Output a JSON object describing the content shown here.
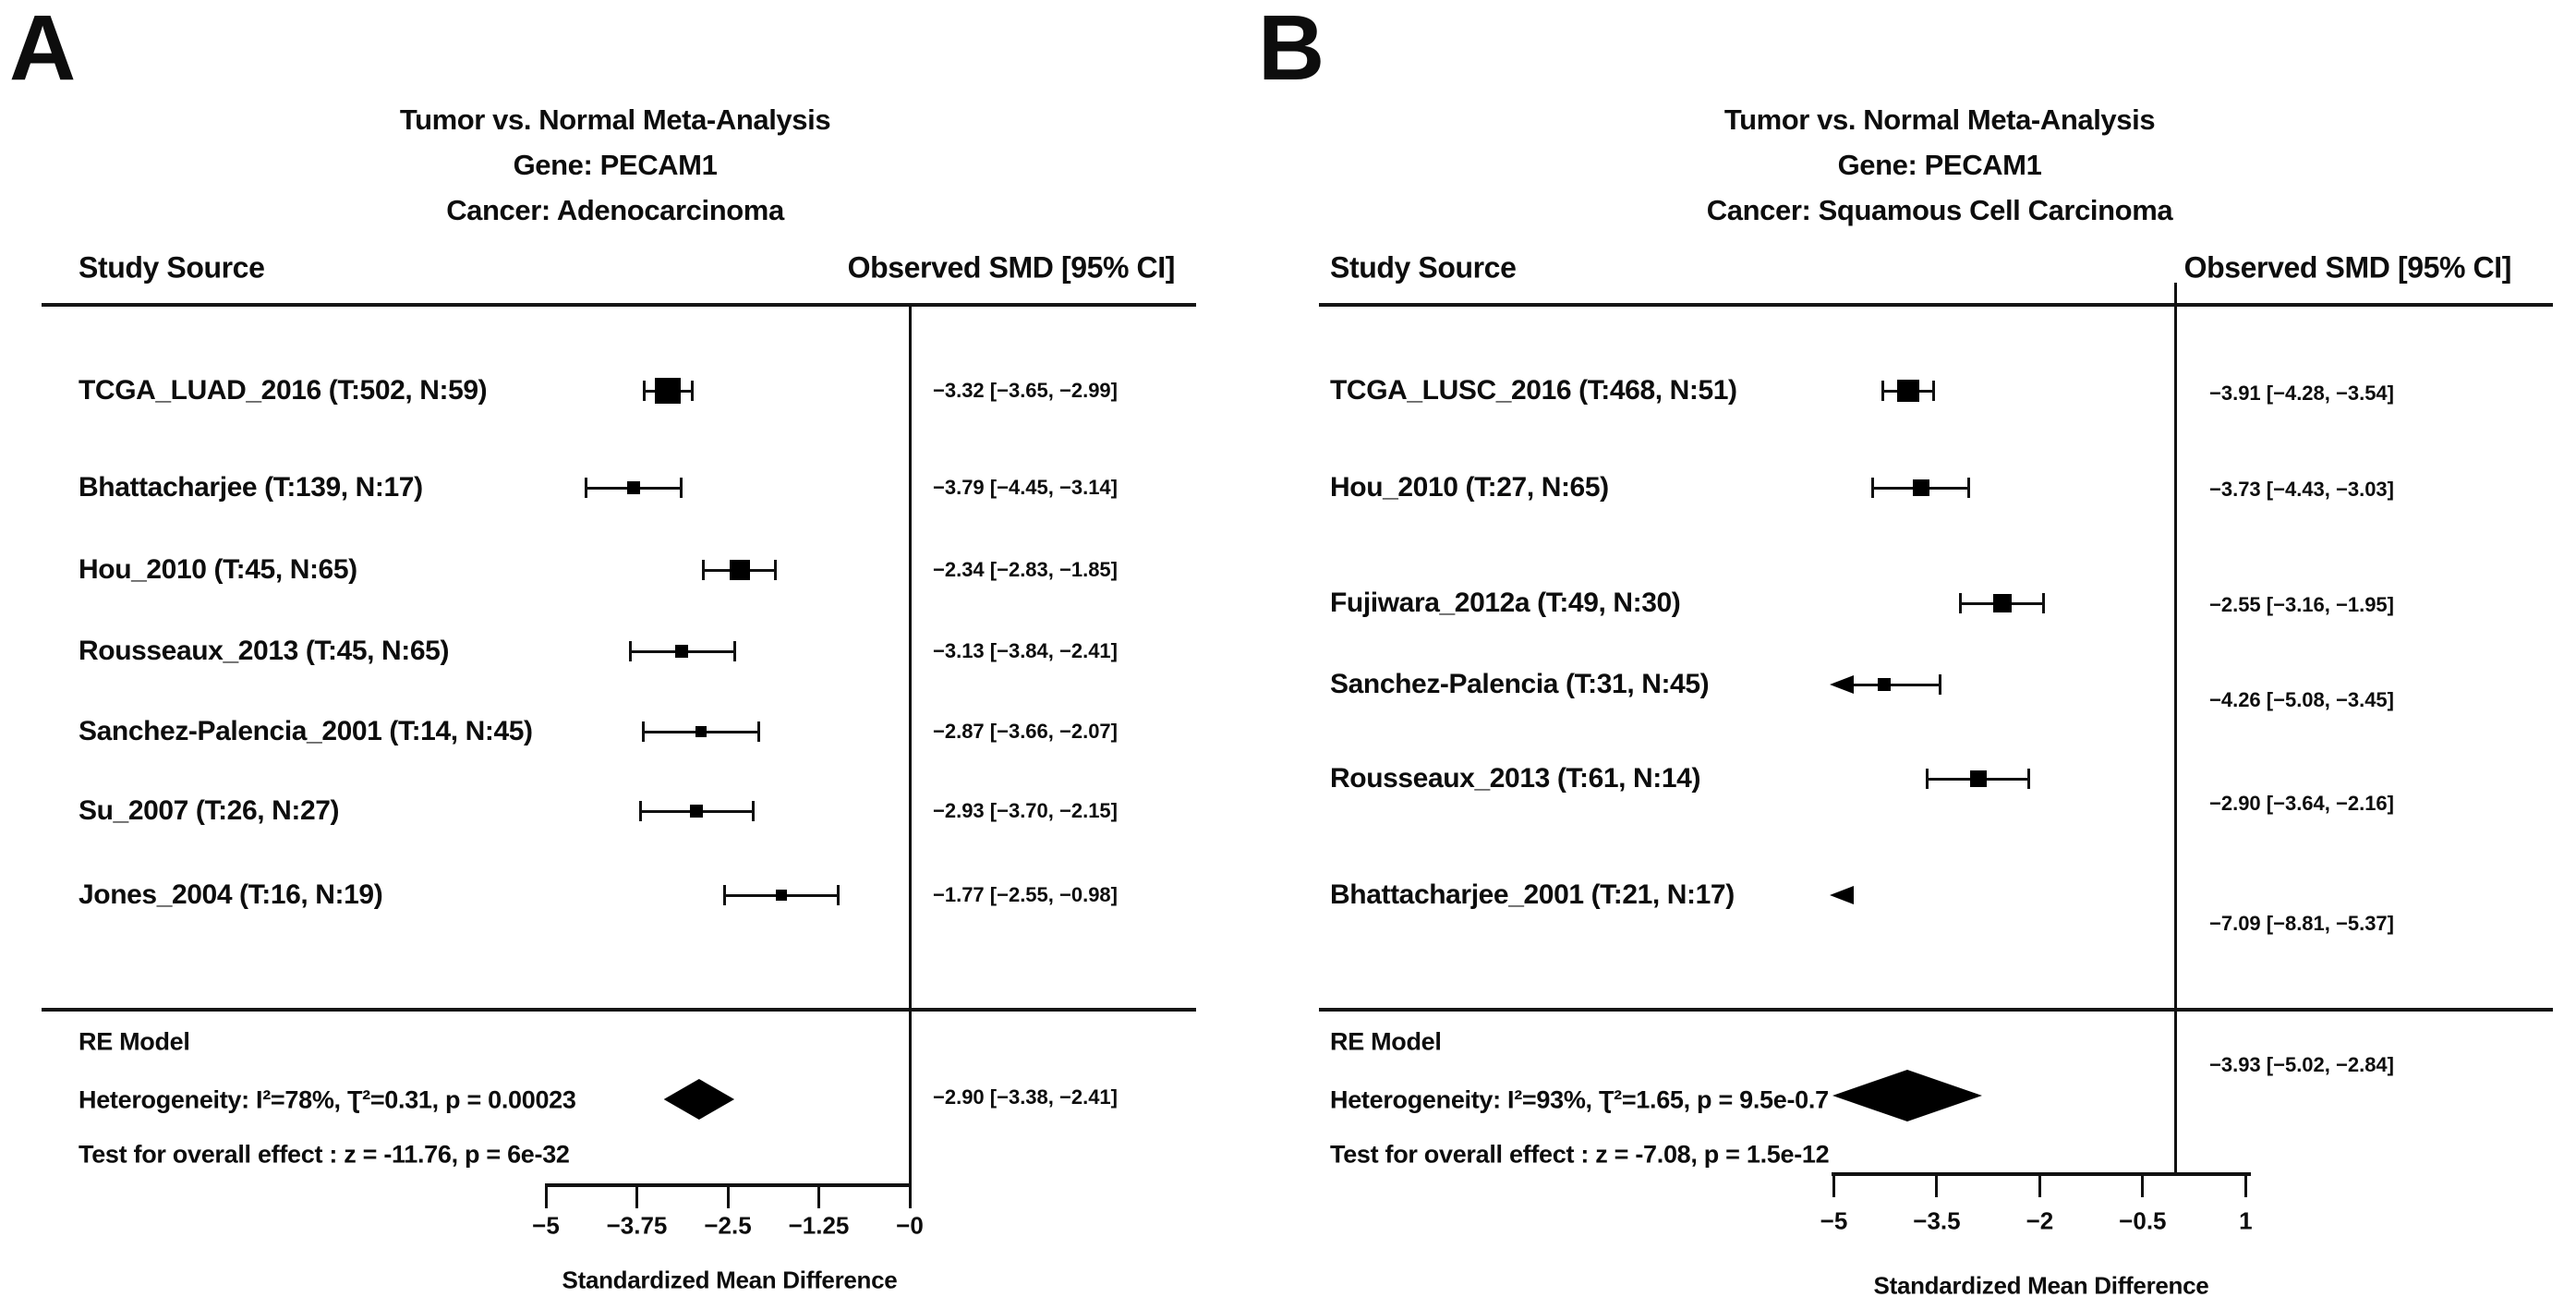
{
  "figure_name": "Tumor vs. Normal PECAM1 forest plots",
  "chart_data": [
    {
      "type": "forest",
      "panel": "A",
      "title": "Tumor vs. Normal Meta-Analysis",
      "subtitle_gene": "Gene: PECAM1",
      "subtitle_cancer": "Cancer: Adenocarcinoma",
      "col_header_left": "Study Source",
      "col_header_right": "Observed SMD [95% CI]",
      "xlabel": "Standardized Mean Difference",
      "xlim": [
        -5,
        0
      ],
      "xticks": [
        {
          "value": -5,
          "label": "−5"
        },
        {
          "value": -3.75,
          "label": "−3.75"
        },
        {
          "value": -2.5,
          "label": "−2.5"
        },
        {
          "value": -1.25,
          "label": "−1.25"
        },
        {
          "value": 0,
          "label": "−0"
        }
      ],
      "studies": [
        {
          "label": "TCGA_LUAD_2016 (T:502, N:59)",
          "smd": -3.32,
          "ci_low": -3.65,
          "ci_high": -2.99,
          "value_label": "−3.32 [−3.65, −2.99]",
          "marker_size": 28
        },
        {
          "label": "Bhattacharjee (T:139, N:17)",
          "smd": -3.79,
          "ci_low": -4.45,
          "ci_high": -3.14,
          "value_label": "−3.79 [−4.45, −3.14]",
          "marker_size": 14
        },
        {
          "label": "Hou_2010 (T:45, N:65)",
          "smd": -2.34,
          "ci_low": -2.83,
          "ci_high": -1.85,
          "value_label": "−2.34 [−2.83, −1.85]",
          "marker_size": 22
        },
        {
          "label": "Rousseaux_2013 (T:45, N:65)",
          "smd": -3.13,
          "ci_low": -3.84,
          "ci_high": -2.41,
          "value_label": "−3.13 [−3.84, −2.41]",
          "marker_size": 14
        },
        {
          "label": "Sanchez-Palencia_2001 (T:14, N:45)",
          "smd": -2.87,
          "ci_low": -3.66,
          "ci_high": -2.07,
          "value_label": "−2.87 [−3.66, −2.07]",
          "marker_size": 12
        },
        {
          "label": "Su_2007 (T:26, N:27)",
          "smd": -2.93,
          "ci_low": -3.7,
          "ci_high": -2.15,
          "value_label": "−2.93 [−3.70, −2.15]",
          "marker_size": 14
        },
        {
          "label": "Jones_2004 (T:16, N:19)",
          "smd": -1.77,
          "ci_low": -2.55,
          "ci_high": -0.98,
          "value_label": "−1.77 [−2.55, −0.98]",
          "marker_size": 12
        }
      ],
      "re_model": {
        "label": "RE Model",
        "heterogeneity": "Heterogeneity: I²=78%, Ʈ²=0.31, p = 0.00023",
        "overall_test": "Test for overall effect : z = -11.76, p = 6e-32",
        "smd": -2.9,
        "ci_low": -3.38,
        "ci_high": -2.41,
        "value_label": "−2.90 [−3.38, −2.41]"
      }
    },
    {
      "type": "forest",
      "panel": "B",
      "title": "Tumor vs. Normal Meta-Analysis",
      "subtitle_gene": "Gene: PECAM1",
      "subtitle_cancer": "Cancer: Squamous Cell Carcinoma",
      "col_header_left": "Study Source",
      "col_header_right": "Observed SMD [95% CI]",
      "xlabel": "Standardized Mean Difference",
      "xlim": [
        -5,
        1
      ],
      "xticks": [
        {
          "value": -5,
          "label": "−5"
        },
        {
          "value": -3.5,
          "label": "−3.5"
        },
        {
          "value": -2,
          "label": "−2"
        },
        {
          "value": -0.5,
          "label": "−0.5"
        },
        {
          "value": 1,
          "label": "1"
        }
      ],
      "studies": [
        {
          "label": "TCGA_LUSC_2016 (T:468, N:51)",
          "smd": -3.91,
          "ci_low": -4.28,
          "ci_high": -3.54,
          "value_label": "−3.91 [−4.28, −3.54]",
          "marker_size": 24
        },
        {
          "label": "Hou_2010 (T:27, N:65)",
          "smd": -3.73,
          "ci_low": -4.43,
          "ci_high": -3.03,
          "value_label": "−3.73 [−4.43, −3.03]",
          "marker_size": 18
        },
        {
          "label": "Fujiwara_2012a (T:49, N:30)",
          "smd": -2.55,
          "ci_low": -3.16,
          "ci_high": -1.95,
          "value_label": "−2.55 [−3.16, −1.95]",
          "marker_size": 20
        },
        {
          "label": "Sanchez-Palencia (T:31, N:45)",
          "smd": -4.26,
          "ci_low": -5.08,
          "ci_high": -3.45,
          "value_label": "−4.26 [−5.08, −3.45]",
          "marker_size": 14
        },
        {
          "label": "Rousseaux_2013 (T:61, N:14)",
          "smd": -2.9,
          "ci_low": -3.64,
          "ci_high": -2.16,
          "value_label": "−2.90 [−3.64, −2.16]",
          "marker_size": 18
        },
        {
          "label": "Bhattacharjee_2001 (T:21, N:17)",
          "smd": -7.09,
          "ci_low": -8.81,
          "ci_high": -5.37,
          "value_label": "−7.09 [−8.81, −5.37]",
          "marker_size": 14
        }
      ],
      "re_model": {
        "label": "RE Model",
        "heterogeneity": "Heterogeneity: I²=93%, Ʈ²=1.65, p = 9.5e-0.7",
        "overall_test": "Test for overall effect : z = -7.08, p = 1.5e-12",
        "smd": -3.93,
        "ci_low": -5.02,
        "ci_high": -2.84,
        "value_label": "−3.93 [−5.02, −2.84]"
      }
    }
  ]
}
